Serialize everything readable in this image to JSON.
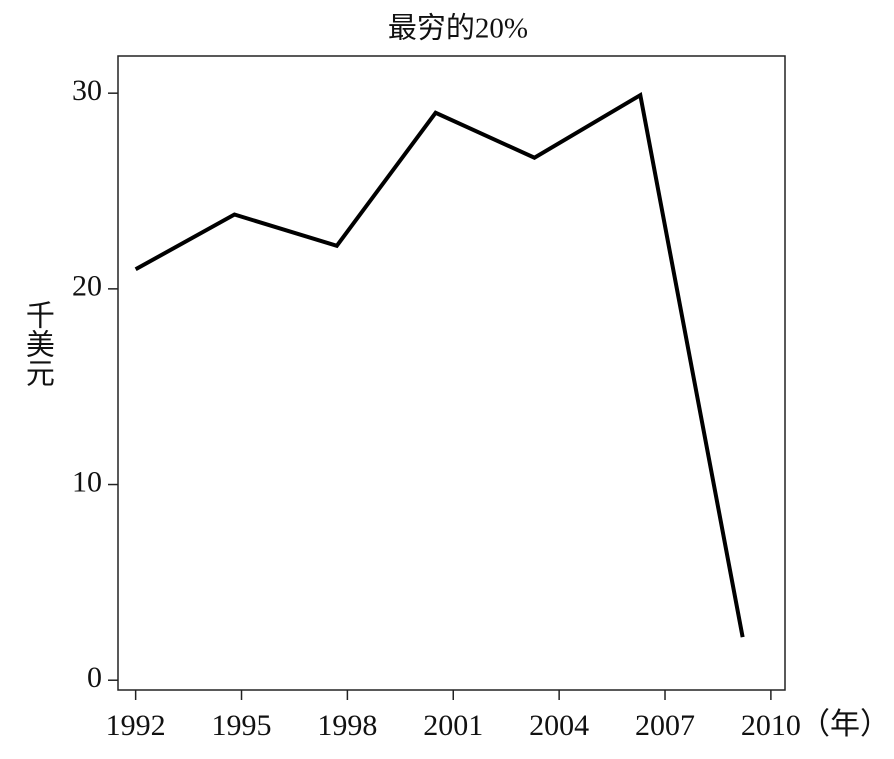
{
  "chart_data": {
    "type": "line",
    "title": "最穷的20%",
    "x_label": "（年）",
    "y_label": "千美元",
    "x": [
      1992,
      1994.8,
      1997.7,
      2000.5,
      2003.3,
      2006.3,
      2009.2
    ],
    "values": [
      21,
      23.8,
      22.2,
      29,
      26.7,
      29.9,
      2.2
    ],
    "color": "#000000",
    "xlim": [
      1991.5,
      2010.4
    ],
    "xticks": [
      1992,
      1995,
      1998,
      2001,
      2004,
      2007,
      2010
    ],
    "ylim": [
      -0.5,
      31.9
    ],
    "yticks": [
      0,
      10,
      20,
      30
    ]
  }
}
